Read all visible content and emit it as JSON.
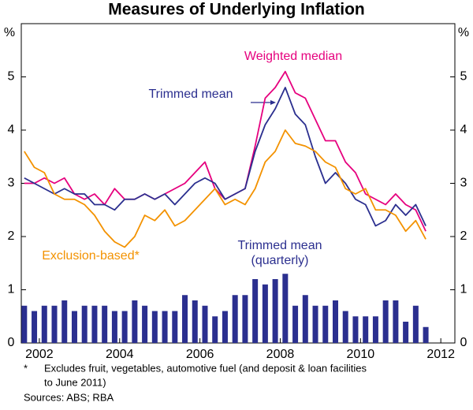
{
  "chart_data": {
    "type": "line",
    "title": "Measures of Underlying Inflation",
    "y_unit_left": "%",
    "y_unit_right": "%",
    "x": [
      2001.625,
      2001.875,
      2002.125,
      2002.375,
      2002.625,
      2002.875,
      2003.125,
      2003.375,
      2003.625,
      2003.875,
      2004.125,
      2004.375,
      2004.625,
      2004.875,
      2005.125,
      2005.375,
      2005.625,
      2005.875,
      2006.125,
      2006.375,
      2006.625,
      2006.875,
      2007.125,
      2007.375,
      2007.625,
      2007.875,
      2008.125,
      2008.375,
      2008.625,
      2008.875,
      2009.125,
      2009.375,
      2009.625,
      2009.875,
      2010.125,
      2010.375,
      2010.625,
      2010.875,
      2011.125,
      2011.375,
      2011.625
    ],
    "series": [
      {
        "name": "Weighted median",
        "color": "#e6007e",
        "values": [
          3.0,
          3.0,
          3.1,
          3.0,
          3.1,
          2.8,
          2.7,
          2.8,
          2.6,
          2.9,
          2.7,
          2.7,
          2.8,
          2.7,
          2.8,
          2.9,
          3.0,
          3.2,
          3.4,
          2.9,
          2.7,
          2.8,
          2.9,
          3.7,
          4.6,
          4.8,
          5.1,
          4.7,
          4.6,
          4.2,
          3.8,
          3.8,
          3.4,
          3.2,
          2.8,
          2.7,
          2.6,
          2.8,
          2.6,
          2.5,
          2.1
        ]
      },
      {
        "name": "Trimmed mean",
        "color": "#2b2f8f",
        "values": [
          3.1,
          3.0,
          2.9,
          2.8,
          2.9,
          2.8,
          2.8,
          2.6,
          2.6,
          2.5,
          2.7,
          2.7,
          2.8,
          2.7,
          2.8,
          2.6,
          2.8,
          3.0,
          3.1,
          3.0,
          2.7,
          2.8,
          2.9,
          3.6,
          4.1,
          4.4,
          4.8,
          4.3,
          4.1,
          3.5,
          3.0,
          3.2,
          3.0,
          2.7,
          2.6,
          2.2,
          2.3,
          2.6,
          2.4,
          2.6,
          2.2
        ]
      },
      {
        "name": "Exclusion-based*",
        "color": "#f39200",
        "values": [
          3.6,
          3.3,
          3.2,
          2.8,
          2.7,
          2.7,
          2.6,
          2.4,
          2.1,
          1.9,
          1.8,
          2.0,
          2.4,
          2.3,
          2.5,
          2.2,
          2.3,
          2.5,
          2.7,
          2.9,
          2.6,
          2.7,
          2.6,
          2.9,
          3.4,
          3.6,
          4.0,
          3.75,
          3.7,
          3.6,
          3.4,
          3.3,
          2.9,
          2.8,
          2.9,
          2.5,
          2.5,
          2.4,
          2.1,
          2.3,
          1.95
        ]
      },
      {
        "name": "Trimmed mean",
        "name2": "(quarterly)",
        "type": "bar",
        "color": "#2b2f8f",
        "values": [
          0.7,
          0.6,
          0.7,
          0.7,
          0.8,
          0.6,
          0.7,
          0.7,
          0.7,
          0.6,
          0.6,
          0.8,
          0.7,
          0.6,
          0.6,
          0.6,
          0.9,
          0.8,
          0.7,
          0.5,
          0.6,
          0.9,
          0.9,
          1.2,
          1.1,
          1.2,
          1.3,
          0.7,
          0.9,
          0.7,
          0.7,
          0.8,
          0.6,
          0.5,
          0.5,
          0.5,
          0.8,
          0.8,
          0.4,
          0.7,
          0.3
        ]
      }
    ],
    "xlim": [
      2001.55,
      2012.35
    ],
    "xticks": [
      2002,
      2004,
      2006,
      2008,
      2010,
      2012
    ],
    "ylim": [
      0,
      6
    ],
    "yticks": [
      0,
      1,
      2,
      3,
      4,
      5
    ],
    "y2lim": [
      0,
      6
    ],
    "y2ticks": [
      0,
      1,
      2,
      3,
      4,
      5
    ],
    "notes": [
      "*",
      "Excludes fruit, vegetables, automotive fuel (and deposit & loan facilities",
      "to June 2011)",
      "Sources: ABS; RBA"
    ]
  }
}
